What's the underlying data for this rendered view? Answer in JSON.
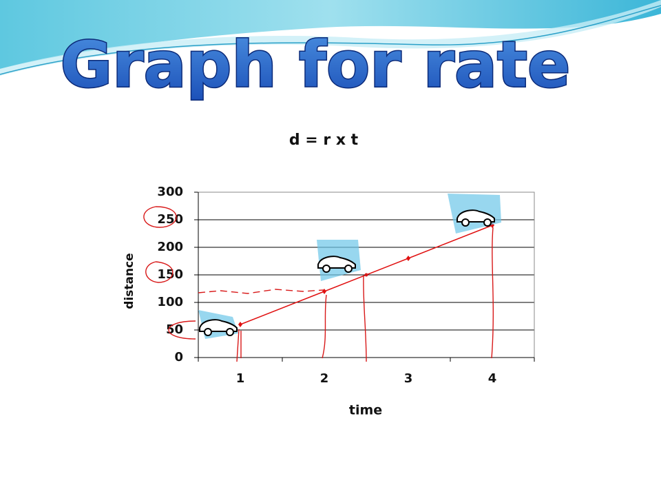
{
  "slide_title": "Graph for rate",
  "chart_data": {
    "type": "line",
    "title": "d = r x t",
    "x_label": "time",
    "y_label": "distance",
    "categories": [
      "1",
      "2",
      "3",
      "4"
    ],
    "series": [
      {
        "name": "distance",
        "color": "#e01010",
        "values": [
          60,
          120,
          180,
          240
        ]
      }
    ],
    "ylim": [
      0,
      300
    ],
    "yticks": [
      0,
      50,
      100,
      150,
      200,
      250,
      300
    ],
    "grid": true
  }
}
